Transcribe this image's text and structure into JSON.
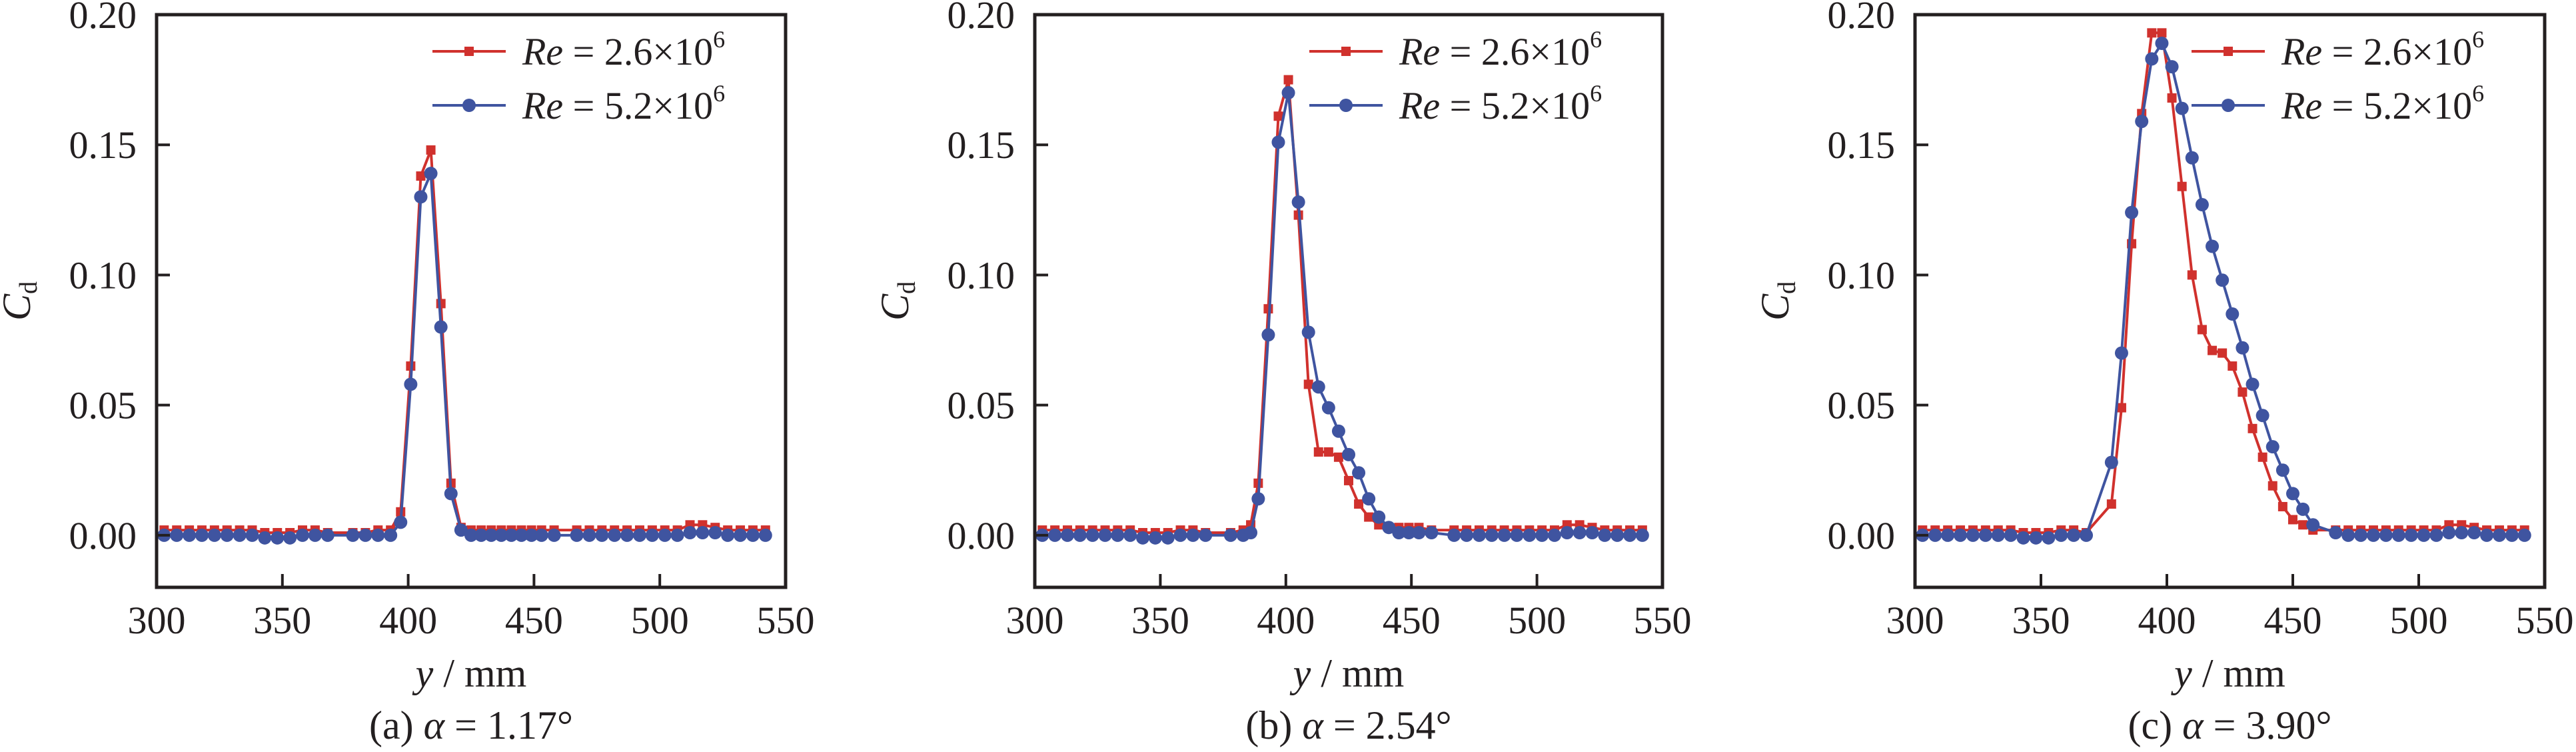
{
  "colors": {
    "red": "#d0312d",
    "blue": "#3f54a0",
    "axis": "#231f20"
  },
  "chart_data": [
    {
      "type": "line",
      "caption": {
        "prefix": "(a) ",
        "symbol": "α",
        "value": " = 1.17°"
      },
      "xlabel": {
        "var": "y",
        "unit": " / mm"
      },
      "ylabel": {
        "main": "C",
        "sub": "d"
      },
      "xlim": [
        300,
        550
      ],
      "ylim": [
        -0.02,
        0.2
      ],
      "xticks": [
        "300",
        "350",
        "400",
        "450",
        "500",
        "550"
      ],
      "yticks": [
        "0.00",
        "0.05",
        "0.10",
        "0.15",
        "0.20"
      ],
      "legend_position": "top-right",
      "series": [
        {
          "name_var": "Re",
          "name_val": " = 2.6×10",
          "name_exp": "6",
          "color": "#d0312d",
          "marker": "square",
          "x": [
            303,
            308,
            313,
            318,
            323,
            328,
            333,
            338,
            343,
            348,
            353,
            358,
            363,
            368,
            378,
            383,
            388,
            393,
            397,
            401,
            405,
            409,
            413,
            417,
            421,
            425,
            429,
            433,
            437,
            441,
            445,
            449,
            453,
            458,
            467,
            472,
            477,
            482,
            487,
            492,
            497,
            502,
            507,
            512,
            517,
            522,
            527,
            532,
            537,
            542
          ],
          "y": [
            0.002,
            0.002,
            0.002,
            0.002,
            0.002,
            0.002,
            0.002,
            0.002,
            0.001,
            0.001,
            0.001,
            0.002,
            0.002,
            0.001,
            0.001,
            0.001,
            0.002,
            0.002,
            0.009,
            0.065,
            0.138,
            0.148,
            0.089,
            0.02,
            0.003,
            0.002,
            0.002,
            0.002,
            0.002,
            0.002,
            0.002,
            0.002,
            0.002,
            0.002,
            0.002,
            0.002,
            0.002,
            0.002,
            0.002,
            0.002,
            0.002,
            0.002,
            0.002,
            0.004,
            0.004,
            0.003,
            0.002,
            0.002,
            0.002,
            0.002
          ]
        },
        {
          "name_var": "Re",
          "name_val": " = 5.2×10",
          "name_exp": "6",
          "color": "#3f54a0",
          "marker": "circle",
          "x": [
            303,
            308,
            313,
            318,
            323,
            328,
            333,
            338,
            343,
            348,
            353,
            358,
            363,
            368,
            378,
            383,
            388,
            393,
            397,
            401,
            405,
            409,
            413,
            417,
            421,
            425,
            429,
            433,
            437,
            441,
            445,
            449,
            453,
            458,
            467,
            472,
            477,
            482,
            487,
            492,
            497,
            502,
            507,
            512,
            517,
            522,
            527,
            532,
            537,
            542
          ],
          "y": [
            0.0,
            0.0,
            0.0,
            0.0,
            0.0,
            0.0,
            0.0,
            0.0,
            -0.001,
            -0.001,
            -0.001,
            0.0,
            0.0,
            0.0,
            0.0,
            0.0,
            0.0,
            0.0,
            0.005,
            0.058,
            0.13,
            0.139,
            0.08,
            0.016,
            0.002,
            0.0,
            0.0,
            0.0,
            0.0,
            0.0,
            0.0,
            0.0,
            0.0,
            0.0,
            0.0,
            0.0,
            0.0,
            0.0,
            0.0,
            0.0,
            0.0,
            0.0,
            0.0,
            0.001,
            0.001,
            0.001,
            0.0,
            0.0,
            0.0,
            0.0
          ]
        }
      ]
    },
    {
      "type": "line",
      "caption": {
        "prefix": "(b) ",
        "symbol": "α",
        "value": " = 2.54°"
      },
      "xlabel": {
        "var": "y",
        "unit": " / mm"
      },
      "ylabel": {
        "main": "C",
        "sub": "d"
      },
      "xlim": [
        300,
        550
      ],
      "ylim": [
        -0.02,
        0.2
      ],
      "xticks": [
        "300",
        "350",
        "400",
        "450",
        "500",
        "550"
      ],
      "yticks": [
        "0.00",
        "0.05",
        "0.10",
        "0.15",
        "0.20"
      ],
      "legend_position": "top-right",
      "series": [
        {
          "name_var": "Re",
          "name_val": " = 2.6×10",
          "name_exp": "6",
          "color": "#d0312d",
          "marker": "square",
          "x": [
            303,
            308,
            313,
            318,
            323,
            328,
            333,
            338,
            343,
            348,
            353,
            358,
            363,
            368,
            378,
            383,
            386,
            389,
            393,
            397,
            401,
            405,
            409,
            413,
            417,
            421,
            425,
            429,
            433,
            437,
            441,
            445,
            449,
            453,
            458,
            467,
            472,
            477,
            482,
            487,
            492,
            497,
            502,
            507,
            512,
            517,
            522,
            527,
            532,
            537,
            542
          ],
          "y": [
            0.002,
            0.002,
            0.002,
            0.002,
            0.002,
            0.002,
            0.002,
            0.002,
            0.001,
            0.001,
            0.001,
            0.002,
            0.002,
            0.001,
            0.001,
            0.002,
            0.004,
            0.02,
            0.087,
            0.161,
            0.175,
            0.123,
            0.058,
            0.032,
            0.032,
            0.03,
            0.021,
            0.012,
            0.007,
            0.004,
            0.003,
            0.003,
            0.003,
            0.003,
            0.002,
            0.002,
            0.002,
            0.002,
            0.002,
            0.002,
            0.002,
            0.002,
            0.002,
            0.002,
            0.004,
            0.004,
            0.003,
            0.002,
            0.002,
            0.002,
            0.002
          ]
        },
        {
          "name_var": "Re",
          "name_val": " = 5.2×10",
          "name_exp": "6",
          "color": "#3f54a0",
          "marker": "circle",
          "x": [
            303,
            308,
            313,
            318,
            323,
            328,
            333,
            338,
            343,
            348,
            353,
            358,
            363,
            368,
            378,
            383,
            386,
            389,
            393,
            397,
            401,
            405,
            409,
            413,
            417,
            421,
            425,
            429,
            433,
            437,
            441,
            445,
            449,
            453,
            458,
            467,
            472,
            477,
            482,
            487,
            492,
            497,
            502,
            507,
            512,
            517,
            522,
            527,
            532,
            537,
            542
          ],
          "y": [
            0.0,
            0.0,
            0.0,
            0.0,
            0.0,
            0.0,
            0.0,
            0.0,
            -0.001,
            -0.001,
            -0.001,
            0.0,
            0.0,
            0.0,
            0.0,
            0.0,
            0.001,
            0.014,
            0.077,
            0.151,
            0.17,
            0.128,
            0.078,
            0.057,
            0.049,
            0.04,
            0.031,
            0.024,
            0.014,
            0.007,
            0.003,
            0.001,
            0.001,
            0.001,
            0.001,
            0.0,
            0.0,
            0.0,
            0.0,
            0.0,
            0.0,
            0.0,
            0.0,
            0.0,
            0.001,
            0.001,
            0.001,
            0.0,
            0.0,
            0.0,
            0.0
          ]
        }
      ]
    },
    {
      "type": "line",
      "caption": {
        "prefix": "(c) ",
        "symbol": "α",
        "value": " = 3.90°"
      },
      "xlabel": {
        "var": "y",
        "unit": " / mm"
      },
      "ylabel": {
        "main": "C",
        "sub": "d"
      },
      "xlim": [
        300,
        550
      ],
      "ylim": [
        -0.02,
        0.2
      ],
      "xticks": [
        "300",
        "350",
        "400",
        "450",
        "500",
        "550"
      ],
      "yticks": [
        "0.00",
        "0.05",
        "0.10",
        "0.15",
        "0.20"
      ],
      "legend_position": "top-right",
      "series": [
        {
          "name_var": "Re",
          "name_val": " = 2.6×10",
          "name_exp": "6",
          "color": "#d0312d",
          "marker": "square",
          "x": [
            303,
            308,
            313,
            318,
            323,
            328,
            333,
            338,
            343,
            348,
            353,
            358,
            363,
            368,
            378,
            382,
            386,
            390,
            394,
            398,
            402,
            406,
            410,
            414,
            418,
            422,
            426,
            430,
            434,
            438,
            442,
            446,
            450,
            454,
            458,
            467,
            472,
            477,
            482,
            487,
            492,
            497,
            502,
            507,
            512,
            517,
            522,
            527,
            532,
            537,
            542
          ],
          "y": [
            0.002,
            0.002,
            0.002,
            0.002,
            0.002,
            0.002,
            0.002,
            0.002,
            0.001,
            0.001,
            0.001,
            0.002,
            0.002,
            0.001,
            0.012,
            0.049,
            0.112,
            0.162,
            0.193,
            0.193,
            0.168,
            0.134,
            0.1,
            0.079,
            0.071,
            0.07,
            0.065,
            0.055,
            0.041,
            0.03,
            0.019,
            0.011,
            0.006,
            0.004,
            0.002,
            0.002,
            0.002,
            0.002,
            0.002,
            0.002,
            0.002,
            0.002,
            0.002,
            0.002,
            0.004,
            0.004,
            0.003,
            0.002,
            0.002,
            0.002,
            0.002
          ]
        },
        {
          "name_var": "Re",
          "name_val": " = 5.2×10",
          "name_exp": "6",
          "color": "#3f54a0",
          "marker": "circle",
          "x": [
            303,
            308,
            313,
            318,
            323,
            328,
            333,
            338,
            343,
            348,
            353,
            358,
            363,
            368,
            378,
            382,
            386,
            390,
            394,
            398,
            402,
            406,
            410,
            414,
            418,
            422,
            426,
            430,
            434,
            438,
            442,
            446,
            450,
            454,
            458,
            467,
            472,
            477,
            482,
            487,
            492,
            497,
            502,
            507,
            512,
            517,
            522,
            527,
            532,
            537,
            542
          ],
          "y": [
            0.0,
            0.0,
            0.0,
            0.0,
            0.0,
            0.0,
            0.0,
            0.0,
            -0.001,
            -0.001,
            -0.001,
            0.0,
            0.0,
            0.0,
            0.028,
            0.07,
            0.124,
            0.159,
            0.183,
            0.189,
            0.18,
            0.164,
            0.145,
            0.127,
            0.111,
            0.098,
            0.085,
            0.072,
            0.058,
            0.046,
            0.034,
            0.025,
            0.016,
            0.01,
            0.004,
            0.001,
            0.0,
            0.0,
            0.0,
            0.0,
            0.0,
            0.0,
            0.0,
            0.0,
            0.001,
            0.001,
            0.001,
            0.0,
            0.0,
            0.0,
            0.0
          ]
        }
      ]
    }
  ]
}
